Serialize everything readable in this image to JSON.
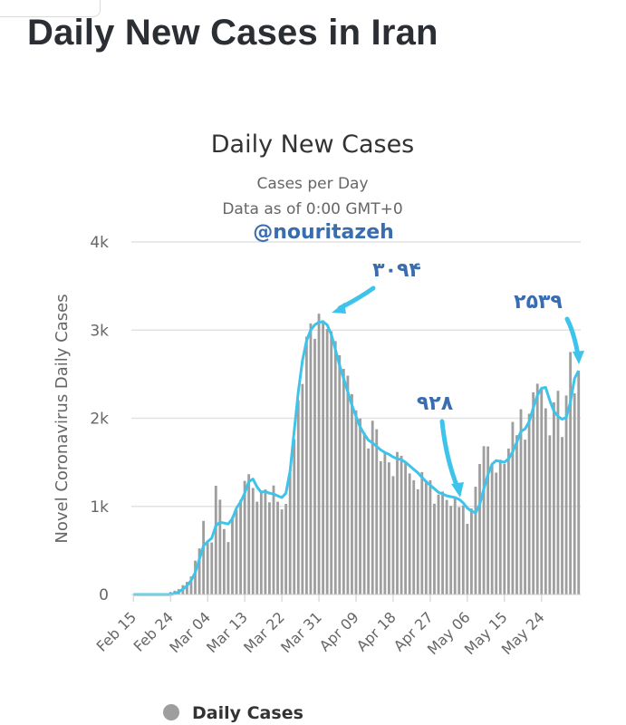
{
  "page": {
    "title": "Daily New Cases in Iran"
  },
  "colors": {
    "bars": "#9e9e9e",
    "line": "#3ec4ea",
    "annotation": "#3a6db0",
    "grid": "#e2e2e2"
  },
  "chart_data": {
    "type": "bar",
    "title": "Daily New Cases",
    "subtitle": "Cases per Day",
    "subtitle2": "Data as of 0:00 GMT+0",
    "watermark": "@nouritazeh",
    "ylabel": "Novel Coronavirus Daily Cases",
    "ylim": [
      0,
      4000
    ],
    "yticks": [
      0,
      1000,
      2000,
      3000,
      4000
    ],
    "ytick_labels": [
      "0",
      "1k",
      "2k",
      "3k",
      "4k"
    ],
    "x_start": "Feb 15",
    "x_tick_labels": [
      "Feb 15",
      "Feb 24",
      "Mar 04",
      "Mar 13",
      "Mar 22",
      "Mar 31",
      "Apr 09",
      "Apr 18",
      "Apr 27",
      "May 06",
      "May 15",
      "May 24"
    ],
    "x_tick_interval_days": 9,
    "grid": true,
    "legend": {
      "label": "Daily Cases",
      "position": "bottom"
    },
    "series": [
      {
        "name": "Daily Cases",
        "type": "bar",
        "values": [
          0,
          0,
          0,
          0,
          0,
          2,
          3,
          5,
          15,
          28,
          43,
          61,
          106,
          143,
          205,
          385,
          523,
          835,
          586,
          591,
          1234,
          1076,
          743,
          595,
          881,
          958,
          1075,
          1289,
          1365,
          1209,
          1053,
          1178,
          1192,
          1046,
          1237,
          1053,
          966,
          1028,
          1411,
          1762,
          2206,
          2389,
          2926,
          3076,
          2901,
          3186,
          3111,
          3013,
          2988,
          2875,
          2715,
          2560,
          2483,
          2274,
          2089,
          1997,
          1837,
          1657,
          1972,
          1875,
          1512,
          1606,
          1499,
          1343,
          1617,
          1574,
          1508,
          1374,
          1297,
          1194,
          1389,
          1294,
          1297,
          1030,
          1134,
          1168,
          1073,
          1006,
          1112,
          991,
          1010,
          802,
          976,
          1223,
          1481,
          1683,
          1680,
          1485,
          1383,
          1529,
          1481,
          1656,
          1958,
          1808,
          2102,
          1757,
          2051,
          2294,
          2392,
          2346,
          2112,
          1806,
          2180,
          2311,
          1787,
          2258,
          2751,
          2282,
          2539
        ]
      },
      {
        "name": "",
        "type": "line",
        "values": [
          0,
          0,
          0,
          0,
          0,
          0,
          0,
          0,
          0,
          0,
          10,
          30,
          60,
          100,
          160,
          250,
          400,
          550,
          600,
          640,
          780,
          820,
          810,
          800,
          860,
          980,
          1050,
          1150,
          1280,
          1310,
          1220,
          1160,
          1170,
          1150,
          1140,
          1120,
          1100,
          1150,
          1400,
          1850,
          2300,
          2650,
          2880,
          3000,
          3060,
          3090,
          3094,
          3060,
          2950,
          2780,
          2600,
          2450,
          2300,
          2150,
          2020,
          1900,
          1820,
          1750,
          1720,
          1680,
          1640,
          1610,
          1590,
          1560,
          1540,
          1530,
          1500,
          1460,
          1420,
          1380,
          1330,
          1280,
          1240,
          1200,
          1160,
          1140,
          1120,
          1110,
          1100,
          1080,
          1040,
          980,
          945,
          928,
          1020,
          1200,
          1360,
          1480,
          1520,
          1510,
          1500,
          1540,
          1620,
          1730,
          1850,
          1880,
          1960,
          2120,
          2260,
          2340,
          2350,
          2200,
          2080,
          2020,
          1990,
          2010,
          2180,
          2450,
          2539
        ]
      }
    ],
    "annotations": [
      {
        "text": "۳۰۹۴",
        "value": 3094,
        "date": "Apr 01"
      },
      {
        "text": "۹۲۸",
        "value": 928,
        "date": "May 04"
      },
      {
        "text": "۲۵۳۹",
        "value": 2539,
        "date": "Jun 01"
      }
    ]
  }
}
